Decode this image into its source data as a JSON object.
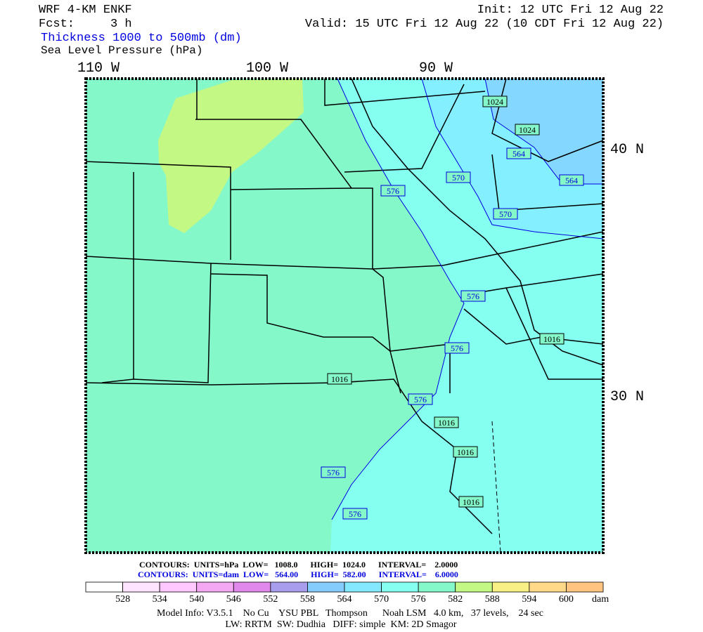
{
  "header": {
    "model": "WRF 4-KM ENKF",
    "forecast": "Fcst:     3 h",
    "field_thickness": "Thickness 1000 to 500mb (dm)",
    "field_pressure": "Sea Level Pressure (hPa)",
    "init": "Init: 12 UTC Fri 12 Aug 22",
    "valid": "Valid: 15 UTC Fri 12 Aug 22 (10 CDT Fri 12 Aug 22)"
  },
  "map": {
    "longitude_labels": [
      "110 W",
      "100 W",
      "90 W"
    ],
    "latitude_labels": [
      "40 N",
      "30 N"
    ],
    "contour_labels": [
      1024,
      1024,
      564,
      570,
      576,
      570,
      564,
      576,
      1016,
      576,
      1016,
      576,
      1016,
      1016,
      1016,
      576,
      576
    ]
  },
  "footer": {
    "pressure_contours": "CONTOURS:  UNITS=hPa  LOW=   1008.0      HIGH=  1024.0      INTERVAL=    2.0000",
    "thickness_contours": "CONTOURS:  UNITS=dam  LOW=   564.00      HIGH=  582.00      INTERVAL=    6.0000",
    "colorbar": {
      "labels": [
        528,
        534,
        540,
        546,
        552,
        558,
        564,
        570,
        576,
        582,
        588,
        594,
        600
      ],
      "unit": "dam",
      "colors": [
        "#ffffff",
        "#ffe4ff",
        "#ffc8ff",
        "#f4a8f4",
        "#e088ec",
        "#a89cec",
        "#84ccfc",
        "#84e8ff",
        "#84fff0",
        "#84f8c8",
        "#c4f884",
        "#f8f084",
        "#ffd888",
        "#ffc480"
      ]
    },
    "model_info": "Model Info: V3.5.1    No Cu    YSU PBL   Thompson      Noah LSM   4.0 km,   37 levels,    24 sec",
    "physics": "LW: RRTM  SW: Dudhia   DIFF: simple  KM: 2D Smagor"
  }
}
